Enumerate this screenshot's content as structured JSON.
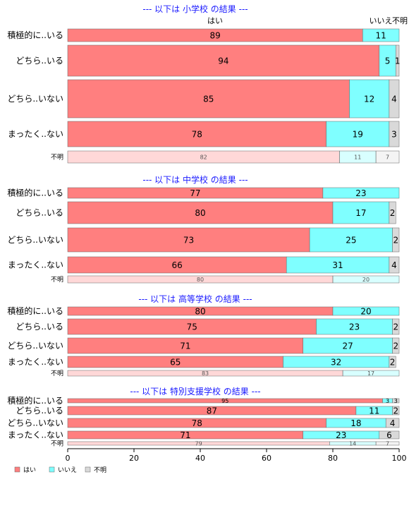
{
  "chart_data": {
    "type": "bar",
    "orientation": "horizontal",
    "stacked": true,
    "xlim": [
      0,
      100
    ],
    "x_ticks": [
      "0",
      "20",
      "40",
      "60",
      "80",
      "100"
    ],
    "colors": {
      "はい": "#ff7f7f",
      "いいえ": "#7fffff",
      "不明": "#d9d9d9"
    },
    "legend_placement": "bottom-left",
    "legend": [
      "はい",
      "いいえ",
      "不明"
    ],
    "top_labels": [
      "はい",
      "いいえ",
      "不明"
    ],
    "panels": [
      {
        "title": "--- 以下は 小学校 の結果 ---",
        "rows": [
          {
            "label": "積極的に..いる",
            "values": [
              89,
              11,
              0
            ]
          },
          {
            "label": "どちら..いる",
            "values": [
              94,
              5,
              1
            ]
          },
          {
            "label": "どちら..いない",
            "values": [
              85,
              12,
              4
            ]
          },
          {
            "label": "まったく..ない",
            "values": [
              78,
              19,
              3
            ]
          },
          {
            "label": "不明",
            "values": [
              82,
              11,
              7
            ],
            "faded": true
          }
        ]
      },
      {
        "title": "--- 以下は 中学校 の結果 ---",
        "rows": [
          {
            "label": "積極的に..いる",
            "values": [
              77,
              23,
              0
            ]
          },
          {
            "label": "どちら..いる",
            "values": [
              80,
              17,
              2
            ]
          },
          {
            "label": "どちら..いない",
            "values": [
              73,
              25,
              2
            ]
          },
          {
            "label": "まったく..ない",
            "values": [
              66,
              31,
              4
            ]
          },
          {
            "label": "不明",
            "values": [
              80,
              20,
              0
            ],
            "faded": true
          }
        ]
      },
      {
        "title": "--- 以下は 高等学校 の結果 ---",
        "rows": [
          {
            "label": "積極的に..いる",
            "values": [
              80,
              20,
              0
            ]
          },
          {
            "label": "どちら..いる",
            "values": [
              75,
              23,
              2
            ]
          },
          {
            "label": "どちら..いない",
            "values": [
              71,
              27,
              2
            ]
          },
          {
            "label": "まったく..ない",
            "values": [
              65,
              32,
              2
            ]
          },
          {
            "label": "不明",
            "values": [
              83,
              17,
              0
            ],
            "faded": true
          }
        ]
      },
      {
        "title": "--- 以下は 特別支援学校 の結果 ---",
        "rows": [
          {
            "label": "積極的に..いる",
            "values": [
              95,
              3,
              3
            ]
          },
          {
            "label": "どちら..いる",
            "values": [
              87,
              11,
              2
            ]
          },
          {
            "label": "どちら..いない",
            "values": [
              78,
              18,
              4
            ]
          },
          {
            "label": "まったく..ない",
            "values": [
              71,
              23,
              6
            ]
          },
          {
            "label": "不明",
            "values": [
              79,
              14,
              7
            ],
            "faded": true
          }
        ]
      }
    ]
  }
}
